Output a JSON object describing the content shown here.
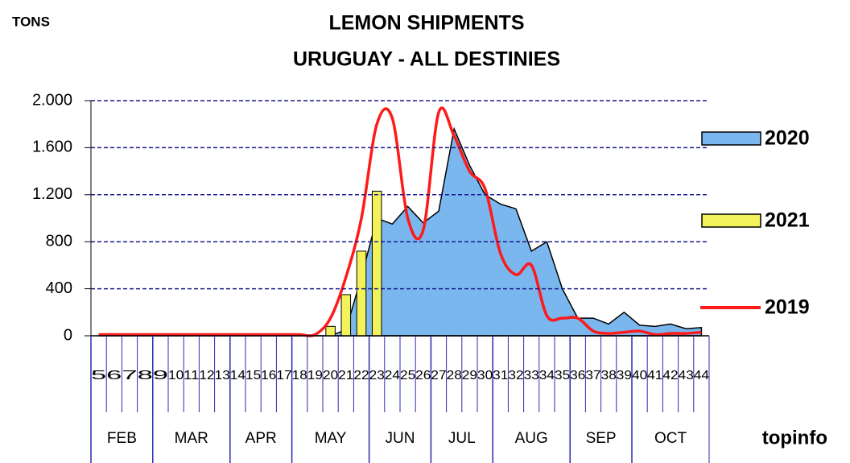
{
  "chart_data": {
    "type": "combo",
    "title": [
      "LEMON SHIPMENTS",
      "URUGUAY - ALL DESTINIES"
    ],
    "y_label": "TONS",
    "logo": "topinfo",
    "categories": [
      "5",
      "6",
      "7",
      "8",
      "9",
      "10",
      "11",
      "12",
      "13",
      "14",
      "15",
      "16",
      "17",
      "18",
      "19",
      "20",
      "21",
      "22",
      "23",
      "24",
      "25",
      "26",
      "27",
      "28",
      "29",
      "30",
      "31",
      "32",
      "33",
      "34",
      "35",
      "36",
      "37",
      "38",
      "39",
      "40",
      "41",
      "42",
      "43",
      "44"
    ],
    "month_groups": [
      {
        "name": "FEB",
        "weeks": 4
      },
      {
        "name": "MAR",
        "weeks": 5
      },
      {
        "name": "APR",
        "weeks": 4
      },
      {
        "name": "MAY",
        "weeks": 5
      },
      {
        "name": "JUN",
        "weeks": 4
      },
      {
        "name": "JUL",
        "weeks": 4
      },
      {
        "name": "AUG",
        "weeks": 5
      },
      {
        "name": "SEP",
        "weeks": 4
      },
      {
        "name": "OCT",
        "weeks": 5
      }
    ],
    "ylim": [
      0,
      2000
    ],
    "yticks": [
      {
        "value": 0,
        "label": "0"
      },
      {
        "value": 400,
        "label": "400"
      },
      {
        "value": 800,
        "label": "800"
      },
      {
        "value": 1200,
        "label": "1.200"
      },
      {
        "value": 1600,
        "label": "1.600"
      },
      {
        "value": 2000,
        "label": "2.000"
      }
    ],
    "grid": true,
    "series": [
      {
        "name": "2020",
        "type": "area",
        "color": "#79b7ee",
        "values": [
          0,
          0,
          0,
          0,
          0,
          0,
          0,
          0,
          0,
          0,
          0,
          0,
          0,
          0,
          0,
          0,
          50,
          500,
          1000,
          950,
          1100,
          960,
          1060,
          1760,
          1450,
          1200,
          1120,
          1080,
          720,
          800,
          400,
          150,
          150,
          100,
          200,
          90,
          80,
          100,
          60,
          70
        ]
      },
      {
        "name": "2021",
        "type": "bar",
        "color": "#f2f25a",
        "values": [
          null,
          null,
          null,
          null,
          null,
          null,
          null,
          null,
          null,
          null,
          null,
          null,
          null,
          null,
          null,
          80,
          350,
          720,
          1230,
          null,
          null,
          null,
          null,
          null,
          null,
          null,
          null,
          null,
          null,
          null,
          null,
          null,
          null,
          null,
          null,
          null,
          null,
          null,
          null,
          null
        ]
      },
      {
        "name": "2019",
        "type": "line",
        "color": "#ff1a1a",
        "values": [
          10,
          10,
          10,
          10,
          10,
          10,
          10,
          10,
          10,
          10,
          10,
          10,
          10,
          10,
          10,
          150,
          500,
          1000,
          1800,
          1850,
          1000,
          900,
          1900,
          1700,
          1400,
          1250,
          700,
          520,
          600,
          170,
          150,
          150,
          40,
          20,
          30,
          40,
          10,
          20,
          20,
          30
        ]
      }
    ]
  }
}
